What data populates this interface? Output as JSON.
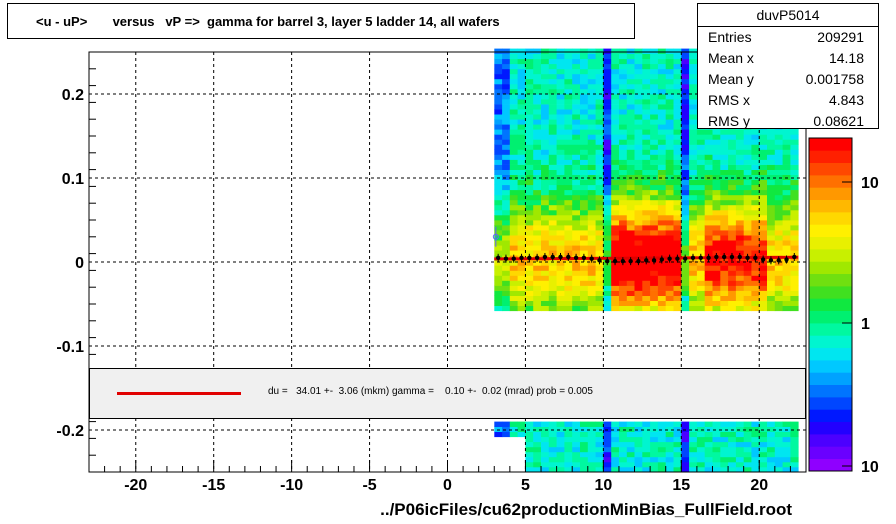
{
  "title": "<u - uP>       versus   vP =>  gamma for barrel 3, layer 5 ladder 14, all wafers",
  "stats": {
    "name": "duvP5014",
    "rows": [
      {
        "label": "Entries",
        "value": "209291"
      },
      {
        "label": "Mean x",
        "value": "14.18"
      },
      {
        "label": "Mean y",
        "value": "0.001758"
      },
      {
        "label": "RMS x",
        "value": "4.843"
      },
      {
        "label": "RMS y",
        "value": "0.08621"
      }
    ]
  },
  "fit_text": "du =   34.01 +-  3.06 (mkm) gamma =    0.10 +-  0.02 (mrad) prob = 0.005",
  "xlabel": "../P06icFiles/cu62productionMinBias_FullField.root",
  "colors": {
    "fit_line": "#e00000",
    "profile_markers": "#000000"
  },
  "chart_data": {
    "type": "heatmap",
    "xlim": [
      -23,
      23
    ],
    "ylim": [
      -0.25,
      0.25
    ],
    "x_ticks": [
      "-20",
      "-15",
      "-10",
      "-5",
      "0",
      "5",
      "10",
      "15",
      "20"
    ],
    "y_ticks": [
      "0.2",
      "0.1",
      "0",
      "-0.1",
      "-0.2"
    ],
    "z_scale": "log",
    "z_ticks": [
      "10",
      "1",
      "10"
    ],
    "grid": true,
    "profile": {
      "x": [
        3.25,
        3.75,
        4.25,
        4.75,
        5.25,
        5.75,
        6.25,
        6.75,
        7.25,
        7.75,
        8.25,
        8.75,
        9.25,
        9.75,
        10.25,
        10.75,
        11.25,
        11.75,
        12.25,
        12.75,
        13.25,
        13.75,
        14.25,
        14.75,
        15.25,
        15.75,
        16.25,
        16.75,
        17.25,
        17.75,
        18.25,
        18.75,
        19.25,
        19.75,
        20.25,
        20.75,
        21.25,
        21.75,
        22.25
      ],
      "y": [
        0.005,
        0.004,
        0.004,
        0.005,
        0.005,
        0.005,
        0.006,
        0.006,
        0.006,
        0.006,
        0.005,
        0.005,
        0.004,
        0.002,
        0.001,
        0.001,
        0.001,
        0.001,
        0.001,
        0.002,
        0.002,
        0.003,
        0.004,
        0.004,
        0.004,
        0.005,
        0.005,
        0.005,
        0.006,
        0.006,
        0.006,
        0.006,
        0.005,
        0.005,
        0.003,
        0.002,
        0.002,
        0.003,
        0.006
      ]
    },
    "outlier_point": {
      "x": 3.1,
      "y": 0.03
    },
    "fit": {
      "slope": 0.0001,
      "intercept": 0.0034,
      "x_range": [
        3,
        22.5
      ]
    }
  }
}
